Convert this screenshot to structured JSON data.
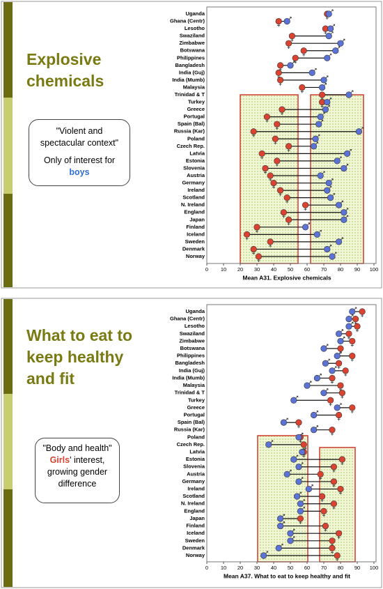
{
  "slides": [
    {
      "title": [
        "Explosive",
        "chemicals"
      ],
      "callout": {
        "quote": [
          "\"Violent and",
          "spectacular context\""
        ],
        "note": "Only of interest for",
        "highlight": "boys"
      }
    },
    {
      "title": [
        "What to eat to",
        "keep healthy",
        "and fit"
      ],
      "callout": {
        "quote": [
          "\"Body and health\""
        ],
        "highlight": "Girls",
        "rest": [
          "' interest,",
          "growing gender",
          "difference"
        ]
      }
    }
  ],
  "chart_data": [
    {
      "type": "dumbbell",
      "xlabel": "Mean A31. Explosive chemicals",
      "categories": [
        "Uganda",
        "Ghana (Centr)",
        "Lesotho",
        "Swaziland",
        "Zimbabwe",
        "Botswana",
        "Philippines",
        "Bangladesh",
        "India (Guj)",
        "India (Mumb)",
        "Malaysia",
        "Trinidad & T",
        "Turkey",
        "Greece",
        "Portugal",
        "Spain (Bal)",
        "Russia (Kar)",
        "Poland",
        "Czech Rep.",
        "Latvia",
        "Estonia",
        "Slovenia",
        "Austria",
        "Germany",
        "Ireland",
        "Scotland",
        "N. Ireland",
        "England",
        "Japan",
        "Finland",
        "Iceland",
        "Sweden",
        "Denmark",
        "Norway"
      ],
      "series": [
        {
          "color": "#d9432f",
          "values": [
            72,
            43,
            71,
            51,
            49,
            58,
            53,
            44,
            43,
            44,
            57,
            69,
            69,
            45,
            36,
            42,
            28,
            41,
            49,
            33,
            42,
            35,
            38,
            40,
            44,
            48,
            59,
            46,
            49,
            30,
            24,
            38,
            28,
            31
          ]
        },
        {
          "color": "#5b72d6",
          "values": [
            73,
            48,
            74,
            73,
            80,
            77,
            72,
            50,
            63,
            70,
            69,
            85,
            72,
            71,
            68,
            67,
            91,
            65,
            64,
            84,
            78,
            82,
            68,
            73,
            72,
            74,
            79,
            82,
            82,
            59,
            66,
            79,
            72,
            75
          ]
        }
      ],
      "xlim": [
        0,
        100
      ],
      "xticks": [
        0,
        10,
        20,
        30,
        40,
        50,
        60,
        70,
        80,
        90,
        100
      ]
    },
    {
      "type": "dumbbell",
      "xlabel": "Mean A37. What to eat to keep healthy and fit",
      "categories": [
        "Uganda",
        "Ghana (Centr)",
        "Lesotho",
        "Swaziland",
        "Zimbabwe",
        "Botswana",
        "Philippines",
        "Bangladesh",
        "India (Guj)",
        "India (Mumb)",
        "Malaysia",
        "Trinidad & T",
        "Turkey",
        "Greece",
        "Portugal",
        "Spain (Bal)",
        "Russia (Kar)",
        "Poland",
        "Czech Rep.",
        "Latvia",
        "Estonia",
        "Slovenia",
        "Austria",
        "Germany",
        "Ireland",
        "Scotland",
        "N. Ireland",
        "England",
        "Japan",
        "Finland",
        "Iceland",
        "Sweden",
        "Denmark",
        "Norway"
      ],
      "series": [
        {
          "color": "#d9432f",
          "values": [
            93,
            89,
            90,
            85,
            87,
            80,
            87,
            79,
            83,
            75,
            80,
            81,
            74,
            87,
            79,
            55,
            75,
            56,
            58,
            58,
            81,
            76,
            68,
            76,
            80,
            69,
            76,
            70,
            56,
            71,
            79,
            75,
            75,
            78
          ]
        },
        {
          "color": "#5b72d6",
          "values": [
            87,
            85,
            85,
            79,
            80,
            70,
            78,
            71,
            75,
            66,
            60,
            70,
            52,
            78,
            64,
            46,
            64,
            55,
            37,
            57,
            52,
            55,
            48,
            55,
            61,
            54,
            56,
            56,
            44,
            44,
            50,
            50,
            43,
            34
          ]
        }
      ],
      "xlim": [
        0,
        100
      ],
      "xticks": [
        0,
        10,
        20,
        30,
        40,
        50,
        60,
        70,
        80,
        90,
        100
      ]
    }
  ]
}
